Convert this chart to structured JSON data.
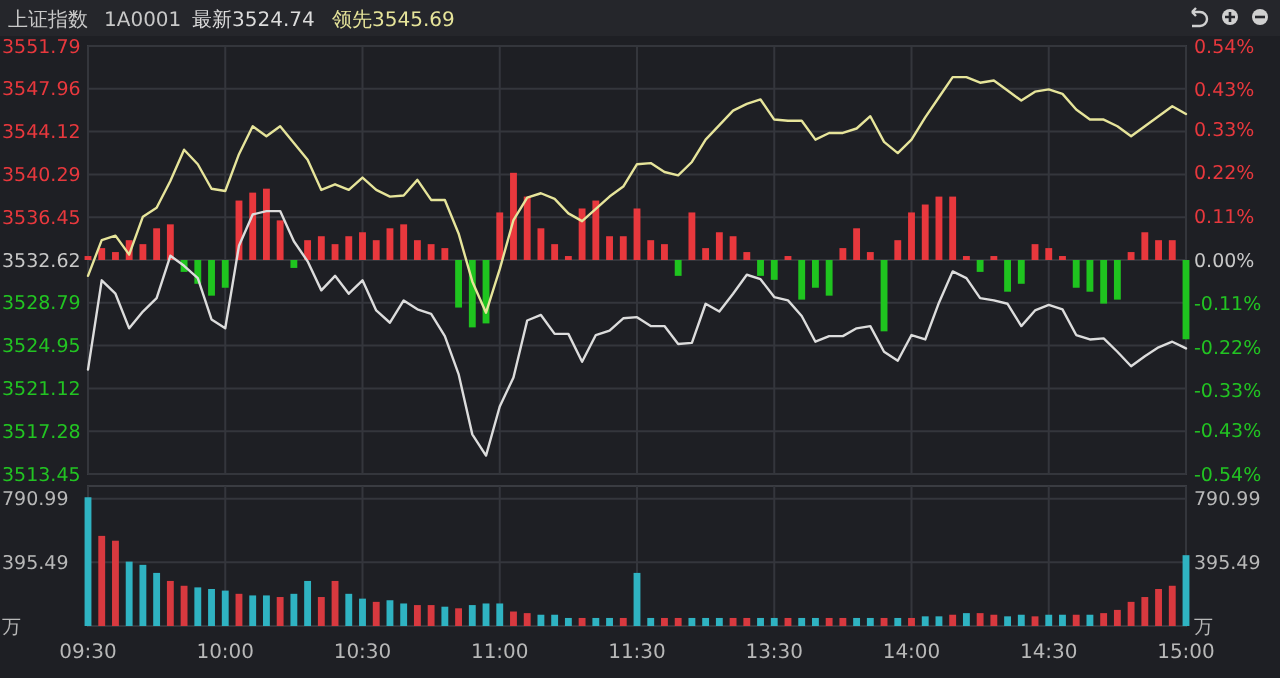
{
  "chart_data": [
    {
      "type": "line",
      "title": "上证指数",
      "subtitle": "1A0001",
      "legend": "top left",
      "grid": true,
      "tick_labels": "y",
      "categories": [
        null,
        null,
        null,
        null,
        null,
        null,
        null,
        null,
        null,
        null,
        null,
        null,
        null,
        null,
        null,
        null,
        null,
        null,
        null,
        null,
        null,
        null,
        null,
        null,
        null,
        null,
        null,
        null,
        null,
        null,
        null,
        null,
        null,
        null,
        null,
        null,
        null,
        null,
        null,
        null,
        null,
        null,
        null,
        null,
        null,
        null,
        null,
        null,
        null,
        null,
        null,
        null,
        null,
        null,
        null,
        null,
        null,
        null,
        null,
        null,
        null,
        null,
        null,
        null,
        null,
        null,
        null,
        null,
        null,
        null,
        null,
        null,
        null,
        null,
        null,
        null,
        null,
        null,
        null,
        null,
        null
      ],
      "ylim": [
        3513.45,
        3551.79
      ],
      "yticks": [
        3551.79,
        3547.96,
        3544.12,
        3540.29,
        3536.45,
        3532.62,
        3528.79,
        3524.95,
        3521.12,
        3517.28,
        3513.45
      ],
      "y2lim": [
        -0.54,
        0.54
      ],
      "y2ticks": [
        {
          "value": 0.54,
          "label": "0.54%"
        },
        {
          "value": 0.43,
          "label": "0.43%"
        },
        {
          "value": 0.33,
          "label": "0.33%"
        },
        {
          "value": 0.22,
          "label": "0.22%"
        },
        {
          "value": 0.11,
          "label": "0.11%"
        },
        {
          "value": 0,
          "label": "0.00%"
        },
        {
          "value": -0.11,
          "label": "-0.11%"
        },
        {
          "value": -0.22,
          "label": "-0.22%"
        },
        {
          "value": -0.33,
          "label": "-0.33%"
        },
        {
          "value": -0.43,
          "label": "-0.43%"
        },
        {
          "value": -0.54,
          "label": "-0.54%"
        }
      ],
      "series": [
        {
          "type": "bar",
          "axis": "y2",
          "values": [
            0.01,
            0.03,
            0.02,
            0.05,
            0.04,
            0.08,
            0.09,
            -0.03,
            -0.06,
            -0.09,
            -0.07,
            0.15,
            0.17,
            0.18,
            0.1,
            -0.02,
            0.05,
            0.06,
            0.04,
            0.06,
            0.07,
            0.05,
            0.08,
            0.09,
            0.05,
            0.04,
            0.03,
            -0.12,
            -0.17,
            -0.16,
            0.12,
            0.22,
            0.16,
            0.08,
            0.04,
            0.01,
            0.13,
            0.15,
            0.06,
            0.06,
            0.13,
            0.05,
            0.04,
            -0.04,
            0.12,
            0.03,
            0.07,
            0.06,
            0.02,
            -0.04,
            -0.05,
            0.01,
            -0.1,
            -0.07,
            -0.09,
            0.03,
            0.08,
            0.02,
            -0.18,
            0.05,
            0.12,
            0.14,
            0.16,
            0.16,
            0.01,
            -0.03,
            0.01,
            -0.08,
            -0.06,
            0.04,
            0.03,
            0.01,
            -0.07,
            -0.08,
            -0.11,
            -0.1,
            0.02,
            0.07,
            0.05,
            0.05,
            -0.2
          ],
          "colors": [
            "#e8383d",
            "#e8383d",
            "#e8383d",
            "#e8383d",
            "#e8383d",
            "#e8383d",
            "#e8383d",
            "#1fc41f",
            "#1fc41f",
            "#1fc41f",
            "#1fc41f",
            "#e8383d",
            "#e8383d",
            "#e8383d",
            "#e8383d",
            "#1fc41f",
            "#e8383d",
            "#e8383d",
            "#e8383d",
            "#e8383d",
            "#e8383d",
            "#e8383d",
            "#e8383d",
            "#e8383d",
            "#e8383d",
            "#e8383d",
            "#e8383d",
            "#1fc41f",
            "#1fc41f",
            "#1fc41f",
            "#e8383d",
            "#e8383d",
            "#e8383d",
            "#e8383d",
            "#e8383d",
            "#e8383d",
            "#e8383d",
            "#e8383d",
            "#e8383d",
            "#e8383d",
            "#e8383d",
            "#e8383d",
            "#e8383d",
            "#1fc41f",
            "#e8383d",
            "#e8383d",
            "#e8383d",
            "#e8383d",
            "#e8383d",
            "#1fc41f",
            "#1fc41f",
            "#e8383d",
            "#1fc41f",
            "#1fc41f",
            "#1fc41f",
            "#e8383d",
            "#e8383d",
            "#e8383d",
            "#1fc41f",
            "#e8383d",
            "#e8383d",
            "#e8383d",
            "#e8383d",
            "#e8383d",
            "#e8383d",
            "#1fc41f",
            "#e8383d",
            "#1fc41f",
            "#1fc41f",
            "#e8383d",
            "#e8383d",
            "#e8383d",
            "#1fc41f",
            "#1fc41f",
            "#1fc41f",
            "#1fc41f",
            "#e8383d",
            "#e8383d",
            "#e8383d",
            "#e8383d",
            "#1fc41f"
          ]
        },
        {
          "name": "最新3524.74",
          "color": "#dcdcdc",
          "values": [
            3522.8,
            3530.8,
            3529.6,
            3526.5,
            3528.0,
            3529.2,
            3533.0,
            3532.1,
            3531.0,
            3527.3,
            3526.5,
            3533.9,
            3536.7,
            3537.0,
            3537.0,
            3534.3,
            3532.5,
            3529.9,
            3531.2,
            3529.6,
            3530.8,
            3528.1,
            3527.0,
            3529.0,
            3528.2,
            3527.8,
            3525.8,
            3522.4,
            3517.0,
            3515.1,
            3519.5,
            3522.1,
            3527.2,
            3527.7,
            3526.0,
            3526.0,
            3523.5,
            3525.9,
            3526.3,
            3527.4,
            3527.5,
            3526.7,
            3526.7,
            3525.1,
            3525.2,
            3528.7,
            3528.0,
            3529.6,
            3531.3,
            3530.9,
            3529.3,
            3529.0,
            3527.6,
            3525.3,
            3525.8,
            3525.8,
            3526.5,
            3526.7,
            3524.4,
            3523.6,
            3525.9,
            3525.5,
            3528.8,
            3531.6,
            3531.0,
            3529.2,
            3529.0,
            3528.7,
            3526.7,
            3528.1,
            3528.6,
            3528.2,
            3525.9,
            3525.5,
            3525.6,
            3524.4,
            3523.1,
            3524.0,
            3524.8,
            3525.3,
            3524.7
          ]
        },
        {
          "name": "领先3545.69",
          "color": "#e6e49a",
          "values": [
            3531.2,
            3534.4,
            3534.8,
            3533.1,
            3536.5,
            3537.3,
            3539.7,
            3542.5,
            3541.2,
            3539.0,
            3538.8,
            3542.1,
            3544.6,
            3543.7,
            3544.6,
            3543.1,
            3541.6,
            3538.9,
            3539.4,
            3538.9,
            3540.0,
            3538.9,
            3538.3,
            3538.4,
            3539.8,
            3538.0,
            3538.0,
            3535.0,
            3530.7,
            3527.9,
            3531.8,
            3536.2,
            3538.2,
            3538.6,
            3538.1,
            3536.8,
            3536.1,
            3537.2,
            3538.3,
            3539.2,
            3541.2,
            3541.3,
            3540.5,
            3540.2,
            3541.4,
            3543.4,
            3544.7,
            3546.0,
            3546.6,
            3547.0,
            3545.2,
            3545.1,
            3545.1,
            3543.4,
            3544.0,
            3544.0,
            3544.4,
            3545.5,
            3543.2,
            3542.2,
            3543.4,
            3545.4,
            3547.2,
            3549.0,
            3549.0,
            3548.5,
            3548.7,
            3547.8,
            3546.9,
            3547.7,
            3547.9,
            3547.5,
            3546.1,
            3545.2,
            3545.2,
            3544.6,
            3543.7,
            3544.6,
            3545.5,
            3546.4,
            3545.7
          ]
        }
      ]
    },
    {
      "type": "bar",
      "grid": true,
      "categories": [
        "09:30",
        null,
        null,
        null,
        null,
        null,
        null,
        null,
        null,
        null,
        "10:00",
        null,
        null,
        null,
        null,
        null,
        null,
        null,
        null,
        null,
        "10:30",
        null,
        null,
        null,
        null,
        null,
        null,
        null,
        null,
        null,
        "11:00",
        null,
        null,
        null,
        null,
        null,
        null,
        null,
        null,
        null,
        "11:30",
        null,
        null,
        null,
        null,
        null,
        null,
        null,
        null,
        null,
        "13:30",
        null,
        null,
        null,
        null,
        null,
        null,
        null,
        null,
        null,
        "14:00",
        null,
        null,
        null,
        null,
        null,
        null,
        null,
        null,
        null,
        "14:30",
        null,
        null,
        null,
        null,
        null,
        null,
        null,
        null,
        null,
        "15:00"
      ],
      "ylim": [
        0,
        870
      ],
      "yticks": [
        {
          "value": 0,
          "label": "万"
        },
        395.49,
        790.99
      ],
      "y2lim": [
        0,
        870
      ],
      "y2ticks": [
        {
          "value": 0,
          "label": "万"
        },
        395.49,
        790.99
      ],
      "values": [
        800,
        560,
        530,
        400,
        380,
        330,
        280,
        250,
        240,
        230,
        220,
        200,
        190,
        190,
        180,
        200,
        280,
        180,
        280,
        200,
        170,
        150,
        160,
        140,
        130,
        130,
        120,
        110,
        130,
        140,
        140,
        90,
        80,
        70,
        70,
        50,
        50,
        50,
        50,
        50,
        330,
        50,
        50,
        50,
        50,
        50,
        50,
        50,
        50,
        50,
        50,
        50,
        50,
        50,
        50,
        50,
        50,
        50,
        50,
        50,
        50,
        60,
        60,
        70,
        80,
        80,
        70,
        60,
        70,
        60,
        70,
        70,
        70,
        70,
        80,
        100,
        150,
        180,
        230,
        250,
        440
      ],
      "colors": [
        "#2fb3c2",
        "#d8393f",
        "#d8393f",
        "#2fb3c2",
        "#2fb3c2",
        "#2fb3c2",
        "#d8393f",
        "#d8393f",
        "#2fb3c2",
        "#2fb3c2",
        "#2fb3c2",
        "#d8393f",
        "#2fb3c2",
        "#2fb3c2",
        "#d8393f",
        "#2fb3c2",
        "#2fb3c2",
        "#d8393f",
        "#d8393f",
        "#2fb3c2",
        "#2fb3c2",
        "#d8393f",
        "#2fb3c2",
        "#2fb3c2",
        "#d8393f",
        "#d8393f",
        "#2fb3c2",
        "#d8393f",
        "#2fb3c2",
        "#2fb3c2",
        "#2fb3c2",
        "#d8393f",
        "#d8393f",
        "#2fb3c2",
        "#2fb3c2",
        "#2fb3c2",
        "#d8393f",
        "#2fb3c2",
        "#2fb3c2",
        "#d8393f",
        "#2fb3c2",
        "#2fb3c2",
        "#d8393f",
        "#d8393f",
        "#2fb3c2",
        "#2fb3c2",
        "#2fb3c2",
        "#d8393f",
        "#d8393f",
        "#2fb3c2",
        "#2fb3c2",
        "#d8393f",
        "#2fb3c2",
        "#2fb3c2",
        "#d8393f",
        "#d8393f",
        "#2fb3c2",
        "#2fb3c2",
        "#d8393f",
        "#2fb3c2",
        "#d8393f",
        "#2fb3c2",
        "#2fb3c2",
        "#d8393f",
        "#2fb3c2",
        "#d8393f",
        "#d8393f",
        "#2fb3c2",
        "#2fb3c2",
        "#d8393f",
        "#2fb3c2",
        "#2fb3c2",
        "#d8393f",
        "#2fb3c2",
        "#d8393f",
        "#d8393f",
        "#d8393f",
        "#d8393f",
        "#d8393f",
        "#d8393f",
        "#2fb3c2"
      ]
    }
  ]
}
